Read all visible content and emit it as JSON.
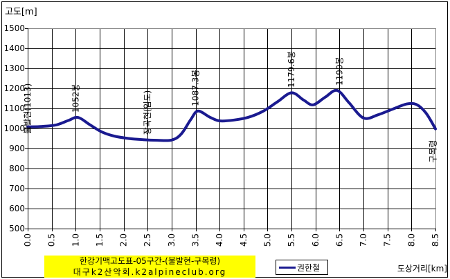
{
  "title": "고도[m]",
  "x_axis_title": "도상거리[km]",
  "legend": {
    "series_label": "권한철"
  },
  "banner": {
    "line1": "한강기맥고도표-05구간-(불발현-구목령)",
    "line2": "대구k2산악회.k2alpineclub.org",
    "bg_color": "#ffff00"
  },
  "colors": {
    "line": "#1a1a90",
    "grid": "#000000",
    "frame": "#808080",
    "text": "#000000",
    "banner_bg": "#ffff00"
  },
  "chart_data": {
    "type": "line",
    "title": "한강기맥고도표-05구간-(불발현-구목령)",
    "xlabel": "도상거리[km]",
    "ylabel": "고도[m]",
    "xlim": [
      0,
      8.5
    ],
    "ylim": [
      500,
      1500
    ],
    "x_tick_step": 0.5,
    "y_tick_step": 100,
    "grid": true,
    "legend_position": "bottom",
    "series": [
      {
        "name": "권한철",
        "points": [
          [
            0.0,
            1008
          ],
          [
            0.3,
            1010
          ],
          [
            0.6,
            1018
          ],
          [
            0.85,
            1040
          ],
          [
            1.05,
            1055
          ],
          [
            1.3,
            1018
          ],
          [
            1.55,
            982
          ],
          [
            1.8,
            962
          ],
          [
            2.1,
            950
          ],
          [
            2.4,
            944
          ],
          [
            2.7,
            941
          ],
          [
            3.0,
            942
          ],
          [
            3.2,
            972
          ],
          [
            3.4,
            1045
          ],
          [
            3.55,
            1087
          ],
          [
            3.8,
            1056
          ],
          [
            4.0,
            1038
          ],
          [
            4.3,
            1042
          ],
          [
            4.6,
            1056
          ],
          [
            4.9,
            1085
          ],
          [
            5.2,
            1132
          ],
          [
            5.5,
            1178
          ],
          [
            5.75,
            1142
          ],
          [
            5.95,
            1118
          ],
          [
            6.2,
            1156
          ],
          [
            6.45,
            1190
          ],
          [
            6.7,
            1128
          ],
          [
            7.0,
            1052
          ],
          [
            7.3,
            1068
          ],
          [
            7.6,
            1096
          ],
          [
            7.9,
            1122
          ],
          [
            8.1,
            1120
          ],
          [
            8.3,
            1078
          ],
          [
            8.5,
            998
          ]
        ]
      }
    ],
    "annotations": [
      {
        "text": "불발현(1013)",
        "km": 0.0,
        "elev": 1008,
        "side": "left"
      },
      {
        "text": "1052봉",
        "km": 1.0,
        "elev": 1055,
        "side": "above"
      },
      {
        "text": "장곡현(임도)",
        "km": 2.5,
        "elev": 944,
        "side": "above"
      },
      {
        "text": "1087.3봉",
        "km": 3.5,
        "elev": 1087.3,
        "side": "above"
      },
      {
        "text": "1179.6봉",
        "km": 5.5,
        "elev": 1179.6,
        "side": "above"
      },
      {
        "text": "1190봉",
        "km": 6.5,
        "elev": 1190,
        "side": "above"
      },
      {
        "text": "구목령",
        "km": 8.45,
        "elev": 998,
        "side": "below"
      }
    ]
  }
}
